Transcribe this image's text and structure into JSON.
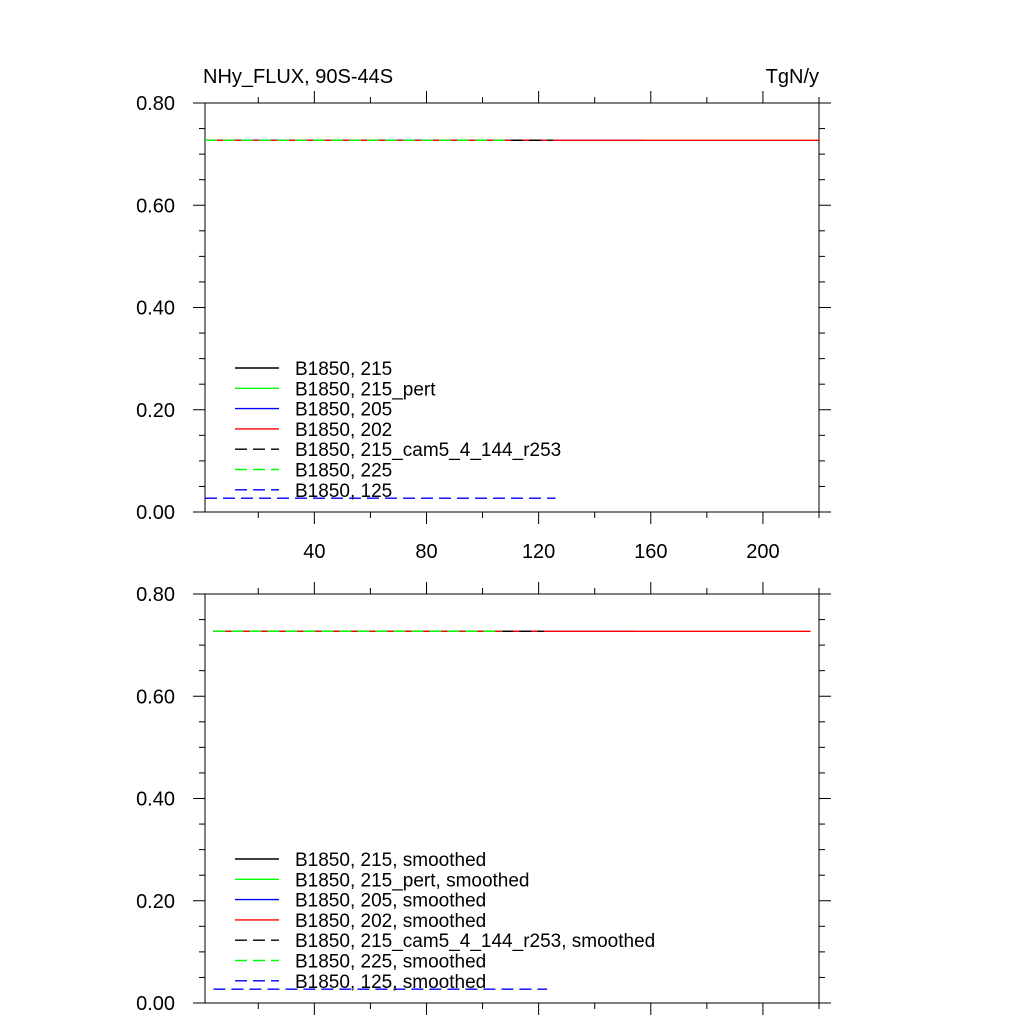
{
  "chart_data": [
    {
      "type": "line",
      "title": "NHy_FLUX, 90S-44S",
      "units": "TgN/y",
      "xlim": [
        1,
        220
      ],
      "ylim": [
        0,
        0.8
      ],
      "xticks": [
        40,
        80,
        120,
        160,
        200
      ],
      "yticks": [
        0,
        0.2,
        0.4,
        0.6,
        0.8
      ],
      "ytick_labels": [
        "0.00",
        "0.20",
        "0.40",
        "0.60",
        "0.80"
      ],
      "xtick_labels": [
        "40",
        "80",
        "120",
        "160",
        "200"
      ],
      "grid": false,
      "legend_position": "bottom-left",
      "series": [
        {
          "name": "B1850, 215",
          "color": "#000000",
          "dash": "solid",
          "x": [
            1,
            125
          ],
          "values": [
            0.727,
            0.727
          ]
        },
        {
          "name": "B1850, 215_pert",
          "color": "#00ff00",
          "dash": "solid",
          "x": [
            1,
            110
          ],
          "values": [
            0.727,
            0.727
          ]
        },
        {
          "name": "B1850, 205",
          "color": "#0000ff",
          "dash": "solid",
          "x": [
            1,
            157
          ],
          "values": [
            0.727,
            0.727
          ]
        },
        {
          "name": "B1850, 202",
          "color": "#ff0000",
          "dash": "solid",
          "x": [
            1,
            220
          ],
          "values": [
            0.727,
            0.727
          ]
        },
        {
          "name": "B1850, 215_cam5_4_144_r253",
          "color": "#000000",
          "dash": "dashed",
          "x": [
            1,
            125
          ],
          "values": [
            0.727,
            0.727
          ]
        },
        {
          "name": "B1850, 225",
          "color": "#00ff00",
          "dash": "dashed",
          "x": [
            1,
            110
          ],
          "values": [
            0.727,
            0.727
          ]
        },
        {
          "name": "B1850, 125",
          "color": "#0000ff",
          "dash": "dashed",
          "x": [
            1,
            126
          ],
          "values": [
            0.027,
            0.027
          ]
        }
      ]
    },
    {
      "type": "line",
      "title": "",
      "units": "",
      "xlim": [
        1,
        220
      ],
      "ylim": [
        0,
        0.8
      ],
      "xticks": [
        40,
        80,
        120,
        160,
        200
      ],
      "yticks": [
        0,
        0.2,
        0.4,
        0.6,
        0.8
      ],
      "ytick_labels": [
        "0.00",
        "0.20",
        "0.40",
        "0.60",
        "0.80"
      ],
      "xtick_labels": [],
      "grid": false,
      "legend_position": "bottom-left",
      "series": [
        {
          "name": "B1850, 215, smoothed",
          "color": "#000000",
          "dash": "solid",
          "x": [
            4,
            122
          ],
          "values": [
            0.727,
            0.727
          ]
        },
        {
          "name": "B1850, 215_pert, smoothed",
          "color": "#00ff00",
          "dash": "solid",
          "x": [
            4,
            107
          ],
          "values": [
            0.727,
            0.727
          ]
        },
        {
          "name": "B1850, 205, smoothed",
          "color": "#0000ff",
          "dash": "solid",
          "x": [
            4,
            154
          ],
          "values": [
            0.727,
            0.727
          ]
        },
        {
          "name": "B1850, 202, smoothed",
          "color": "#ff0000",
          "dash": "solid",
          "x": [
            4,
            217
          ],
          "values": [
            0.727,
            0.727
          ]
        },
        {
          "name": "B1850, 215_cam5_4_144_r253, smoothed",
          "color": "#000000",
          "dash": "dashed",
          "x": [
            4,
            122
          ],
          "values": [
            0.727,
            0.727
          ]
        },
        {
          "name": "B1850, 225, smoothed",
          "color": "#00ff00",
          "dash": "dashed",
          "x": [
            4,
            107
          ],
          "values": [
            0.727,
            0.727
          ]
        },
        {
          "name": "B1850, 125, smoothed",
          "color": "#0000ff",
          "dash": "dashed",
          "x": [
            4,
            123
          ],
          "values": [
            0.027,
            0.027
          ]
        }
      ]
    }
  ]
}
